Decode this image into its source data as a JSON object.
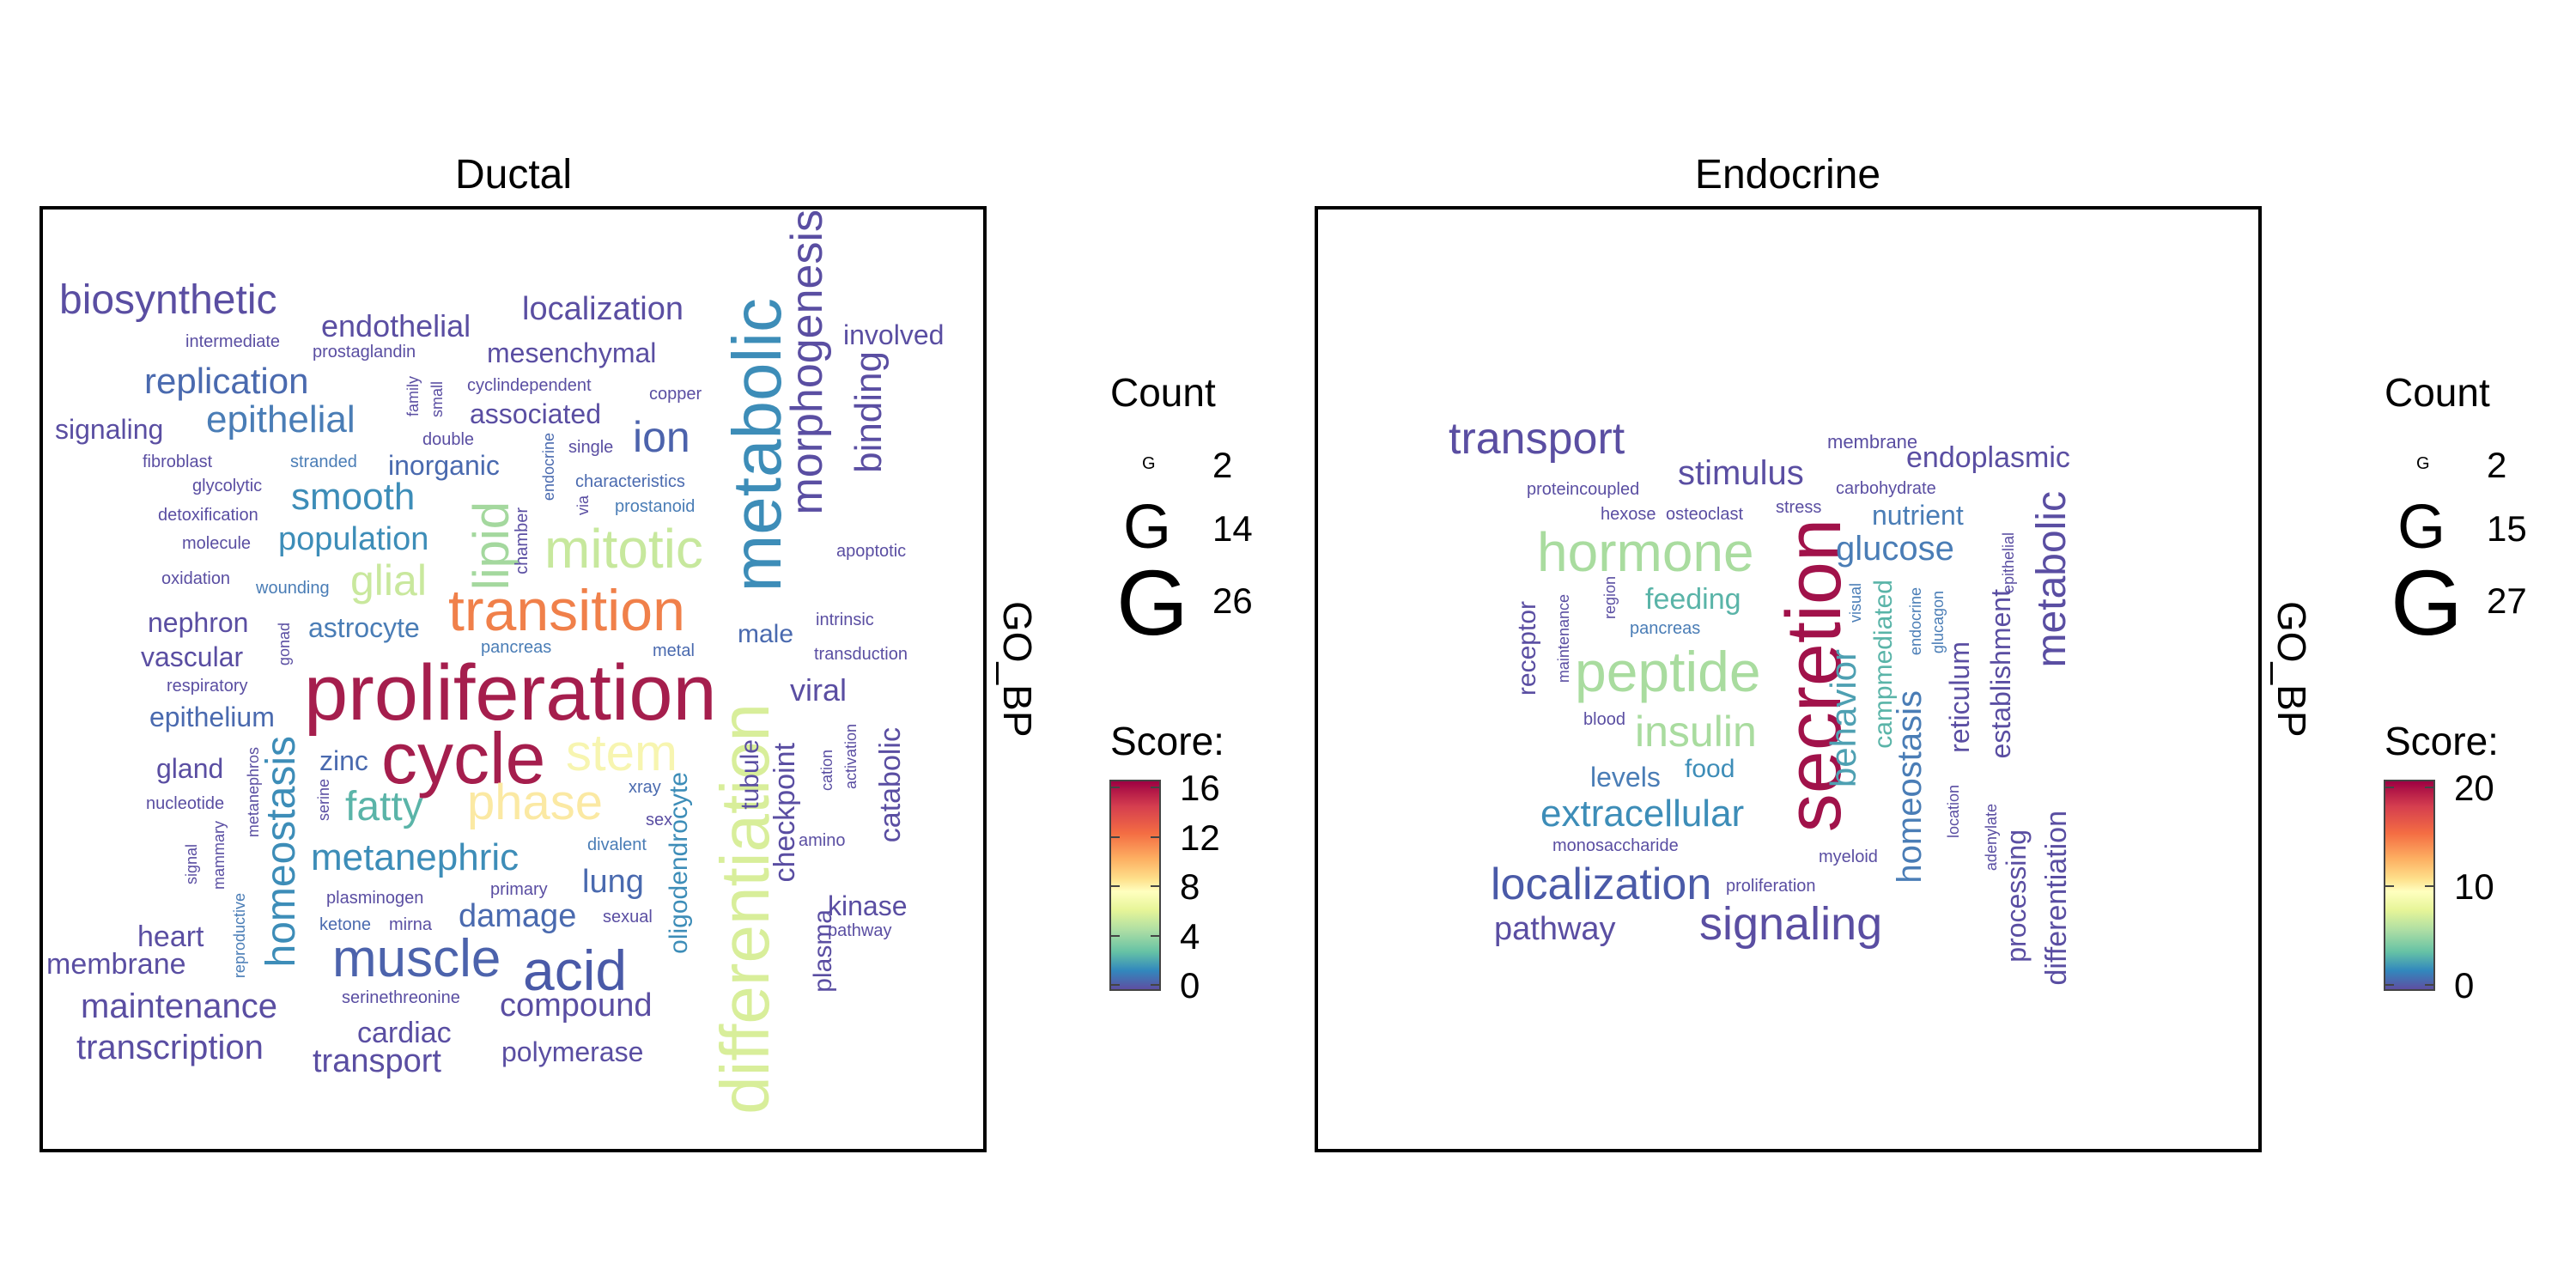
{
  "panels": [
    {
      "title": "Ductal",
      "facet_label": "GO_BP",
      "legend": {
        "count_title": "Count",
        "count_glyph": "G",
        "count_values": [
          "2",
          "14",
          "26"
        ],
        "score_title": "Score:",
        "score_ticks": [
          "16",
          "12",
          "8",
          "4",
          "0"
        ]
      }
    },
    {
      "title": "Endocrine",
      "facet_label": "GO_BP",
      "legend": {
        "count_title": "Count",
        "count_glyph": "G",
        "count_values": [
          "2",
          "15",
          "27"
        ],
        "score_title": "Score:",
        "score_ticks": [
          "20",
          "10",
          "0"
        ]
      }
    }
  ],
  "colors": {
    "palette": "Spectral (reversed): purple-blue low, yellow mid, dark red high",
    "low": "#5a4ea2",
    "high": "#a1124a"
  },
  "chart_data": [
    {
      "type": "wordcloud",
      "title": "Ductal",
      "facet": "GO_BP",
      "words": [
        {
          "t": "proliferation",
          "c": "#a51e4d"
        },
        {
          "t": "cycle",
          "c": "#a51e4d"
        },
        {
          "t": "transition",
          "c": "#f0804a"
        },
        {
          "t": "metabolic",
          "c": "#3d8db8"
        },
        {
          "t": "differentiation",
          "c": "#d8ee9a"
        },
        {
          "t": "morphogenesis",
          "c": "#5a4ea2"
        },
        {
          "t": "mitotic",
          "c": "#c7e89d"
        },
        {
          "t": "stem",
          "c": "#f7f5b0"
        },
        {
          "t": "phase",
          "c": "#fbe9a3"
        },
        {
          "t": "lipid",
          "c": "#a4d89e"
        },
        {
          "t": "muscle",
          "c": "#4c63ac"
        },
        {
          "t": "acid",
          "c": "#4a5aa8"
        },
        {
          "t": "biosynthetic",
          "c": "#5a4ea2"
        },
        {
          "t": "homeostasis",
          "c": "#3d8db8"
        },
        {
          "t": "glial",
          "c": "#c9e89d"
        },
        {
          "t": "fatty",
          "c": "#5ab4a8"
        },
        {
          "t": "metanephric",
          "c": "#3d8db8"
        },
        {
          "t": "binding",
          "c": "#5a4ea2"
        },
        {
          "t": "ion",
          "c": "#4c63ac"
        },
        {
          "t": "smooth",
          "c": "#3d8db8"
        },
        {
          "t": "epithelial",
          "c": "#4a7db6"
        },
        {
          "t": "replication",
          "c": "#4a6aaf"
        },
        {
          "t": "localization",
          "c": "#5a4ea2"
        },
        {
          "t": "oligodendrocyte",
          "c": "#3d8db8"
        },
        {
          "t": "checkpoint",
          "c": "#5a4ea2"
        },
        {
          "t": "transcription",
          "c": "#5a4ea2"
        },
        {
          "t": "maintenance",
          "c": "#5a4ea2"
        },
        {
          "t": "compound",
          "c": "#5a4ea2"
        },
        {
          "t": "damage",
          "c": "#4a6aaf"
        },
        {
          "t": "population",
          "c": "#3d8db8"
        },
        {
          "t": "endothelial",
          "c": "#5a4ea2"
        },
        {
          "t": "mesenchymal",
          "c": "#5a4ea2"
        },
        {
          "t": "involved",
          "c": "#5a4ea2"
        },
        {
          "t": "associated",
          "c": "#5a4ea2"
        },
        {
          "t": "inorganic",
          "c": "#4a6aaf"
        },
        {
          "t": "astrocyte",
          "c": "#4a7db6"
        },
        {
          "t": "male",
          "c": "#4a6aaf"
        },
        {
          "t": "viral",
          "c": "#5a4ea2"
        },
        {
          "t": "tubule",
          "c": "#5a4ea2"
        },
        {
          "t": "catabolic",
          "c": "#5a4ea2"
        },
        {
          "t": "plasma",
          "c": "#5a4ea2"
        },
        {
          "t": "kinase",
          "c": "#5a4ea2"
        },
        {
          "t": "lung",
          "c": "#4a6aaf"
        },
        {
          "t": "cardiac",
          "c": "#5a4ea2"
        },
        {
          "t": "transport",
          "c": "#5a4ea2"
        },
        {
          "t": "polymerase",
          "c": "#5a4ea2"
        },
        {
          "t": "heart",
          "c": "#5a4ea2"
        },
        {
          "t": "membrane",
          "c": "#5a4ea2"
        },
        {
          "t": "signaling",
          "c": "#5a4ea2"
        },
        {
          "t": "nephron",
          "c": "#5a4ea2"
        },
        {
          "t": "vascular",
          "c": "#5a4ea2"
        },
        {
          "t": "epithelium",
          "c": "#4a6aaf"
        },
        {
          "t": "gland",
          "c": "#5a4ea2"
        },
        {
          "t": "zinc",
          "c": "#4a6aaf"
        },
        {
          "t": "intermediate",
          "c": "#5a4ea2"
        },
        {
          "t": "prostaglandin",
          "c": "#5a4ea2"
        },
        {
          "t": "family",
          "c": "#5a4ea2"
        },
        {
          "t": "small",
          "c": "#5a4ea2"
        },
        {
          "t": "cyclindependent",
          "c": "#5a4ea2"
        },
        {
          "t": "copper",
          "c": "#5a4ea2"
        },
        {
          "t": "double",
          "c": "#5a4ea2"
        },
        {
          "t": "endocrine",
          "c": "#4a6aaf"
        },
        {
          "t": "single",
          "c": "#5a4ea2"
        },
        {
          "t": "fibroblast",
          "c": "#5a4ea2"
        },
        {
          "t": "stranded",
          "c": "#4a7db6"
        },
        {
          "t": "glycolytic",
          "c": "#5a4ea2"
        },
        {
          "t": "detoxification",
          "c": "#5a4ea2"
        },
        {
          "t": "molecule",
          "c": "#5a4ea2"
        },
        {
          "t": "oxidation",
          "c": "#5a4ea2"
        },
        {
          "t": "wounding",
          "c": "#4a7db6"
        },
        {
          "t": "chamber",
          "c": "#5a4ea2"
        },
        {
          "t": "via",
          "c": "#5a4ea2"
        },
        {
          "t": "characteristics",
          "c": "#4a6aaf"
        },
        {
          "t": "prostanoid",
          "c": "#4a7db6"
        },
        {
          "t": "apoptotic",
          "c": "#5a4ea2"
        },
        {
          "t": "intrinsic",
          "c": "#5a4ea2"
        },
        {
          "t": "transduction",
          "c": "#5a4ea2"
        },
        {
          "t": "respiratory",
          "c": "#5a4ea2"
        },
        {
          "t": "gonad",
          "c": "#5a4ea2"
        },
        {
          "t": "pancreas",
          "c": "#4a7db6"
        },
        {
          "t": "metal",
          "c": "#4a6aaf"
        },
        {
          "t": "nucleotide",
          "c": "#5a4ea2"
        },
        {
          "t": "metanephros",
          "c": "#5a4ea2"
        },
        {
          "t": "signal",
          "c": "#5a4ea2"
        },
        {
          "t": "mammary",
          "c": "#5a4ea2"
        },
        {
          "t": "reproductive",
          "c": "#4a7db6"
        },
        {
          "t": "serine",
          "c": "#5a4ea2"
        },
        {
          "t": "xray",
          "c": "#4a6aaf"
        },
        {
          "t": "sex",
          "c": "#5a4ea2"
        },
        {
          "t": "divalent",
          "c": "#4a7db6"
        },
        {
          "t": "cation",
          "c": "#5a4ea2"
        },
        {
          "t": "activation",
          "c": "#5a4ea2"
        },
        {
          "t": "amino",
          "c": "#5a4ea2"
        },
        {
          "t": "primary",
          "c": "#5a4ea2"
        },
        {
          "t": "plasminogen",
          "c": "#5a4ea2"
        },
        {
          "t": "ketone",
          "c": "#4a6aaf"
        },
        {
          "t": "mirna",
          "c": "#5a4ea2"
        },
        {
          "t": "sexual",
          "c": "#5a4ea2"
        },
        {
          "t": "pathway",
          "c": "#5a4ea2"
        },
        {
          "t": "serinethreonine",
          "c": "#5a4ea2"
        }
      ]
    },
    {
      "type": "wordcloud",
      "title": "Endocrine",
      "facet": "GO_BP",
      "words": [
        {
          "t": "secretion",
          "c": "#a1124a"
        },
        {
          "t": "hormone",
          "c": "#a9dc9f"
        },
        {
          "t": "peptide",
          "c": "#a9dc9f"
        },
        {
          "t": "insulin",
          "c": "#a9dc9f"
        },
        {
          "t": "transport",
          "c": "#5a4ea2"
        },
        {
          "t": "localization",
          "c": "#4a5aa8"
        },
        {
          "t": "signaling",
          "c": "#5a4ea2"
        },
        {
          "t": "extracellular",
          "c": "#3d8db8"
        },
        {
          "t": "metabolic",
          "c": "#5a4ea2"
        },
        {
          "t": "behavior",
          "c": "#4ea0b2"
        },
        {
          "t": "homeostasis",
          "c": "#4a7db6"
        },
        {
          "t": "stimulus",
          "c": "#5a4ea2"
        },
        {
          "t": "glucose",
          "c": "#4a7db6"
        },
        {
          "t": "endoplasmic",
          "c": "#5a4ea2"
        },
        {
          "t": "differentiation",
          "c": "#5a4ea2"
        },
        {
          "t": "establishment",
          "c": "#5a4ea2"
        },
        {
          "t": "processing",
          "c": "#5a4ea2"
        },
        {
          "t": "reticulum",
          "c": "#5a4ea2"
        },
        {
          "t": "campmediated",
          "c": "#5ab4a8"
        },
        {
          "t": "feeding",
          "c": "#5ab4a8"
        },
        {
          "t": "nutrient",
          "c": "#4a7db6"
        },
        {
          "t": "receptor",
          "c": "#5a4ea2"
        },
        {
          "t": "pathway",
          "c": "#5a4ea2"
        },
        {
          "t": "levels",
          "c": "#4a7db6"
        },
        {
          "t": "food",
          "c": "#3d8db8"
        },
        {
          "t": "membrane",
          "c": "#5a4ea2"
        },
        {
          "t": "proteincoupled",
          "c": "#5a4ea2"
        },
        {
          "t": "carbohydrate",
          "c": "#5a4ea2"
        },
        {
          "t": "hexose",
          "c": "#5a4ea2"
        },
        {
          "t": "osteoclast",
          "c": "#5a4ea2"
        },
        {
          "t": "stress",
          "c": "#5a4ea2"
        },
        {
          "t": "epithelial",
          "c": "#5a4ea2"
        },
        {
          "t": "maintenance",
          "c": "#5a4ea2"
        },
        {
          "t": "region",
          "c": "#5a4ea2"
        },
        {
          "t": "pancreas",
          "c": "#4a7db6"
        },
        {
          "t": "visual",
          "c": "#4a7db6"
        },
        {
          "t": "endocrine",
          "c": "#4a7db6"
        },
        {
          "t": "glucagon",
          "c": "#4a7db6"
        },
        {
          "t": "blood",
          "c": "#5a4ea2"
        },
        {
          "t": "location",
          "c": "#5a4ea2"
        },
        {
          "t": "adenylate",
          "c": "#5a4ea2"
        },
        {
          "t": "monosaccharide",
          "c": "#5a4ea2"
        },
        {
          "t": "myeloid",
          "c": "#5a4ea2"
        },
        {
          "t": "proliferation",
          "c": "#5a4ea2"
        }
      ]
    }
  ]
}
